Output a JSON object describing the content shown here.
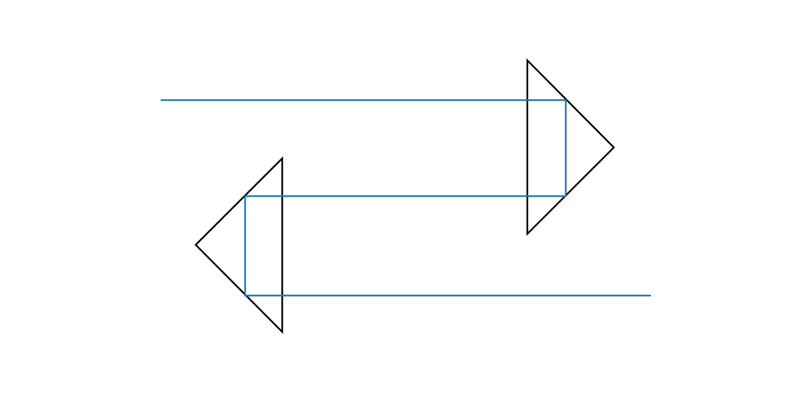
{
  "colors": {
    "background": "#ffffff",
    "triangle_stroke": "#000000",
    "path_stroke": "#1f77b4"
  },
  "shapes": {
    "right_triangle": {
      "direction": "right"
    },
    "left_triangle": {
      "direction": "left"
    },
    "connector": {
      "style": "stepped-line"
    }
  }
}
